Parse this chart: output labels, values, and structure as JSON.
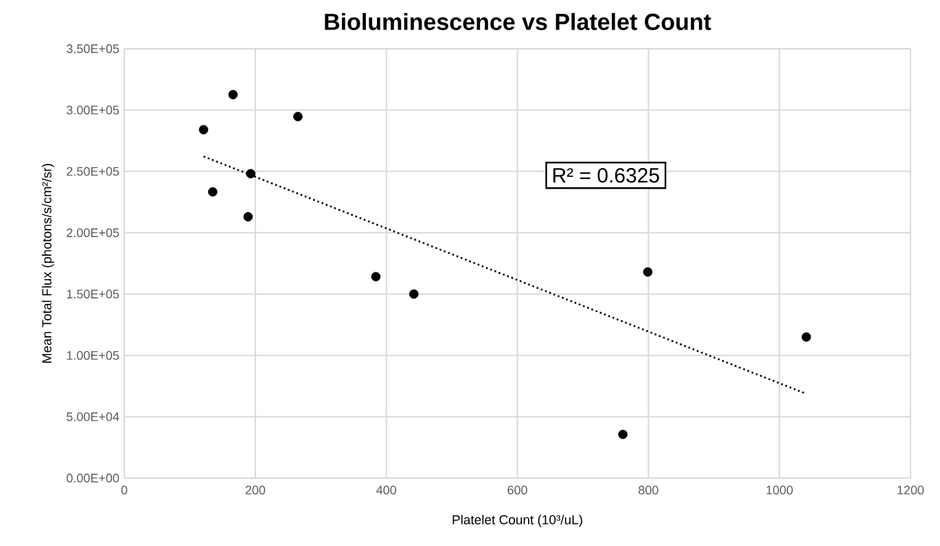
{
  "chart_data": {
    "type": "scatter",
    "title": "Bioluminescence vs Platelet Count",
    "xlabel": "Platelet Count (10³/uL)",
    "ylabel": "Mean Total Flux (photons/s/cm²/sr)",
    "series": [
      {
        "color": "#000000",
        "x": [
          121,
          166,
          265,
          193,
          135,
          189,
          384,
          442,
          799,
          1041,
          761
        ],
        "values": [
          284000,
          312600,
          294700,
          248100,
          233300,
          213000,
          164200,
          150000,
          168000,
          115000,
          35600
        ]
      },
      {
        "type": "line",
        "color": "#000000",
        "line_style": "dotted",
        "marker": "none",
        "x": [
          121,
          1041
        ],
        "values": [
          262200,
          68700
        ]
      }
    ],
    "annotations": [
      "R² = 0.6325"
    ],
    "xlim": [
      0,
      1200
    ],
    "xticks": [
      0,
      200,
      400,
      600,
      800,
      1000,
      1200
    ],
    "ylim": [
      0,
      350000
    ],
    "yticks": [
      {
        "value": 0,
        "label": "0.00E+00"
      },
      {
        "value": 50000,
        "label": "5.00E+04"
      },
      {
        "value": 100000,
        "label": "1.00E+05"
      },
      {
        "value": 150000,
        "label": "1.50E+05"
      },
      {
        "value": 200000,
        "label": "2.00E+05"
      },
      {
        "value": 250000,
        "label": "2.50E+05"
      },
      {
        "value": 300000,
        "label": "3.00E+05"
      },
      {
        "value": 350000,
        "label": "3.50E+05"
      }
    ],
    "grid": true,
    "marker": "circle"
  }
}
